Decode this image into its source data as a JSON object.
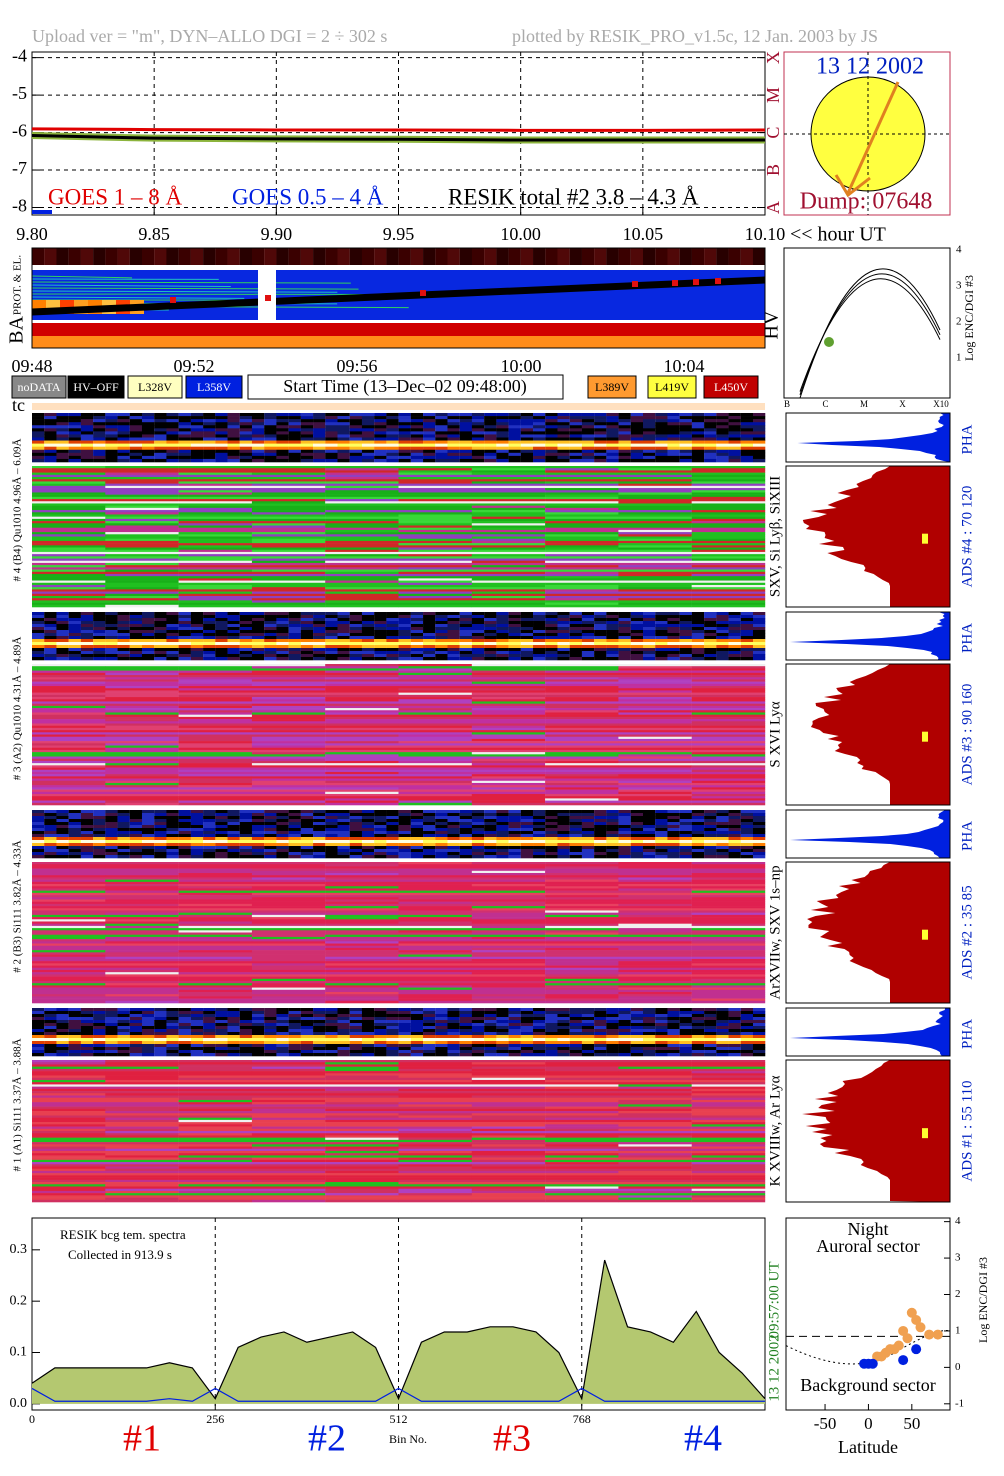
{
  "chart_data": [
    {
      "type": "line",
      "xlabel": "<< hour UT",
      "x": [
        9.8,
        9.85,
        9.9,
        9.95,
        10.0,
        10.05,
        10.1
      ],
      "series": [
        {
          "name": "GOES 1 – 8 Å",
          "color": "#e00000",
          "values": [
            -5.9,
            -5.92,
            -5.93,
            -5.93,
            -5.94,
            -5.94,
            -5.93
          ]
        },
        {
          "name": "GOES 0.5 – 4 Å",
          "color": "#0020e0",
          "values": [
            -8.12,
            null,
            null,
            null,
            null,
            null,
            null
          ]
        },
        {
          "name": "RESIK total #2  3.8 – 4.3 Å",
          "color": "#000000",
          "fill": "#8cb43c",
          "values": [
            -6.08,
            -6.15,
            -6.17,
            -6.18,
            -6.2,
            -6.2,
            -6.2
          ]
        }
      ],
      "xlim": [
        9.8,
        10.1
      ],
      "xticks": [
        {
          "value": 9.8,
          "label": "9.80"
        },
        {
          "value": 9.85,
          "label": "9.85"
        },
        {
          "value": 9.9,
          "label": "9.90"
        },
        {
          "value": 9.95,
          "label": "9.95"
        },
        {
          "value": 10,
          "label": "10.00"
        },
        {
          "value": 10.05,
          "label": "10.05"
        },
        {
          "value": 10.1,
          "label": "10.10"
        }
      ],
      "ylim": [
        -8.2,
        -3.85
      ],
      "yticks": [
        -8,
        -7,
        -6,
        -5,
        -4
      ],
      "y2lim": [
        -8.2,
        -3.85
      ],
      "y2ticks": [
        {
          "value": -8,
          "label": "A"
        },
        {
          "value": -7,
          "label": "B"
        },
        {
          "value": -6,
          "label": "C"
        },
        {
          "value": -5,
          "label": "M"
        },
        {
          "value": -4,
          "label": "X"
        }
      ],
      "grid": true
    },
    {
      "type": "line",
      "annotations": [
        "RESIK bcg tem. spectra",
        "Collected in   913.9 s"
      ],
      "xlabel": "Bin No.",
      "side_labels": [
        "09:57:00 UT",
        "13 12 2002"
      ],
      "sector_labels": [
        "#1",
        "#2",
        "#3",
        "#4"
      ],
      "x": [
        0,
        32,
        64,
        96,
        128,
        160,
        192,
        224,
        256,
        288,
        320,
        352,
        384,
        416,
        448,
        480,
        512,
        544,
        576,
        608,
        640,
        672,
        704,
        736,
        768,
        800,
        832,
        864,
        896,
        928,
        960,
        992,
        1024
      ],
      "series": [
        {
          "color": "#000000",
          "fill": "#b4c870",
          "values": [
            0.04,
            0.07,
            0.07,
            0.07,
            0.07,
            0.07,
            0.08,
            0.07,
            0.01,
            0.11,
            0.13,
            0.14,
            0.12,
            0.13,
            0.14,
            0.11,
            0.01,
            0.12,
            0.14,
            0.14,
            0.15,
            0.15,
            0.14,
            0.1,
            0.01,
            0.28,
            0.15,
            0.14,
            0.12,
            0.18,
            0.1,
            0.06,
            0.01
          ]
        },
        {
          "color": "#0020e0",
          "values": [
            0.03,
            0.005,
            0.005,
            0.005,
            0.005,
            0.005,
            0.01,
            0.005,
            0.03,
            0.005,
            0.005,
            0.005,
            0.005,
            0.005,
            0.005,
            0.005,
            0.03,
            0.005,
            0.005,
            0.005,
            0.005,
            0.005,
            0.005,
            0.005,
            0.03,
            0.005,
            0.005,
            0.005,
            0.005,
            0.005,
            0.005,
            0.005,
            0.005
          ]
        }
      ],
      "xlim": [
        0,
        1024
      ],
      "xticks": [
        0,
        256,
        512,
        768
      ],
      "ylim": [
        -0.012,
        0.362
      ],
      "yticks": [
        {
          "value": 0,
          "label": "0.0"
        },
        {
          "value": 0.1,
          "label": "0.1"
        },
        {
          "value": 0.2,
          "label": "0.2"
        },
        {
          "value": 0.3,
          "label": "0.3"
        }
      ],
      "grid": true
    },
    {
      "type": "scatter",
      "title": "Night",
      "annotations": [
        "Auroral sector",
        "Background sector"
      ],
      "xlabel": "Latitude",
      "ylabel": "Log ENC/DGI #3",
      "series": [
        {
          "color": "#f0a050",
          "x": [
            50,
            55,
            40,
            60,
            70,
            80,
            45,
            35,
            25,
            15,
            10,
            20,
            30
          ],
          "values": [
            1.5,
            1.3,
            1.0,
            1.1,
            0.9,
            0.9,
            0.8,
            0.6,
            0.5,
            0.3,
            0.3,
            0.4,
            0.5
          ]
        },
        {
          "color": "#0020e0",
          "x": [
            -5,
            0,
            5,
            40,
            55
          ],
          "values": [
            0.1,
            0.1,
            0.1,
            0.2,
            0.5
          ]
        }
      ],
      "xlim": [
        -95,
        94
      ],
      "xticks": [
        -50,
        0,
        50
      ],
      "ylim": [
        -1.17,
        4.1
      ],
      "yticks": [
        -1,
        0,
        1,
        2,
        3,
        4
      ]
    }
  ],
  "header": {
    "left": "Upload ver = \"m\", DYN–ALLO DGI =   2 ÷ 302 s",
    "right": "plotted by RESIK_PRO_v1.5c, 12 Jan. 2003 by JS"
  },
  "sun": {
    "date": "13 12 2002",
    "dump": "Dump: 07648"
  },
  "ba": {
    "label": "BA",
    "sublabel": "PROT. & EL.",
    "times": [
      "09:48",
      "09:52",
      "09:56",
      "10:00",
      "10:04"
    ],
    "legend": [
      "noDATA",
      "HV–OFF",
      "L328V",
      "L358V",
      "L389V",
      "L419V",
      "L450V"
    ],
    "start_time": "Start Time (13–Dec–02 09:48:00)",
    "tc": "tc"
  },
  "hv": {
    "label": "HV",
    "ylabel": "Log ENC/DGI #3",
    "yticks": [
      "1",
      "2",
      "3",
      "4"
    ],
    "xticks": [
      "B",
      "C",
      "M",
      "X",
      "X10"
    ]
  },
  "channels": [
    {
      "label": "# 4 (B4) Qu1010 4.96Å – 6.09Å",
      "lines": "SXV, Si Lyβ, SiXIII",
      "ads": "ADS #4 :   70 120",
      "pha": "PHA"
    },
    {
      "label": "# 3 (A2) Qu1010 4.31Å – 4.89Å",
      "lines": "S XVI Lyα",
      "ads": "ADS #3 :   90 160",
      "pha": "PHA"
    },
    {
      "label": "# 2 (B3) Si111 3.82Å – 4.33Å",
      "lines": "ArXVIIw, SXV 1s–np",
      "ads": "ADS #2 :   35 85",
      "pha": "PHA"
    },
    {
      "label": "# 1 (A1) Si111 3.37Å – 3.88Å",
      "lines": "K XVIIIw, Ar Lyα",
      "ads": "ADS #1 :   55 110",
      "pha": "PHA"
    }
  ]
}
